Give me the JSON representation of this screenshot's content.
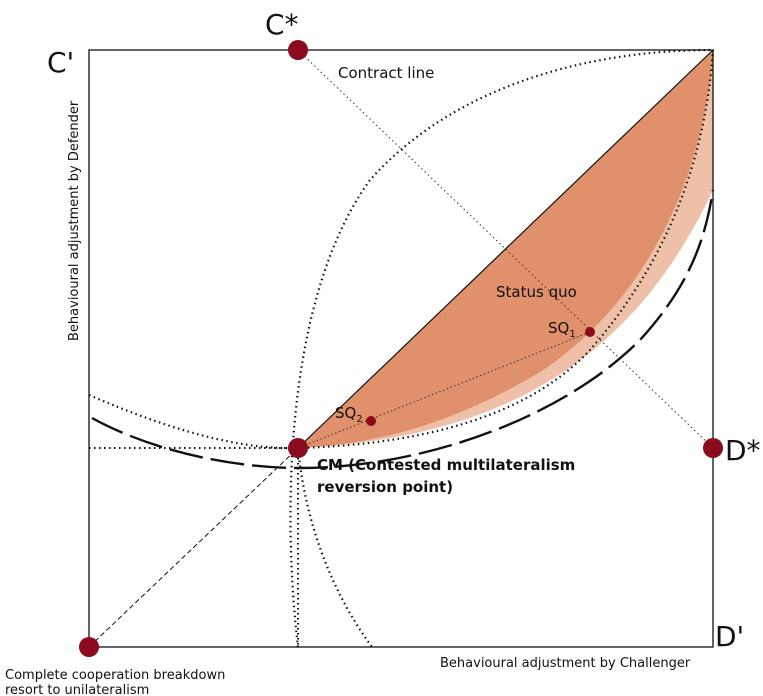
{
  "colors": {
    "region_dark": "#e0906b",
    "region_light": "#efc0a8",
    "point": "#8b0a1e",
    "line": "#111111"
  },
  "corners": {
    "top_left": "C'",
    "bottom_right": "D'"
  },
  "points": {
    "c_star": "C*",
    "d_star": "D*",
    "sq1_base": "SQ",
    "sq1_sub": "1",
    "sq2_base": "SQ",
    "sq2_sub": "2"
  },
  "labels": {
    "contract_line": "Contract line",
    "status_quo": "Status quo",
    "cm_line1": "CM (Contested multilateralism",
    "cm_line2": "reversion point)",
    "breakdown_line1": "Complete cooperation breakdown",
    "breakdown_line2": "resort to unilateralism"
  },
  "axes": {
    "x_label": "Behavioural adjustment by Challenger",
    "y_label": "Behavioural adjustment by Defender"
  }
}
